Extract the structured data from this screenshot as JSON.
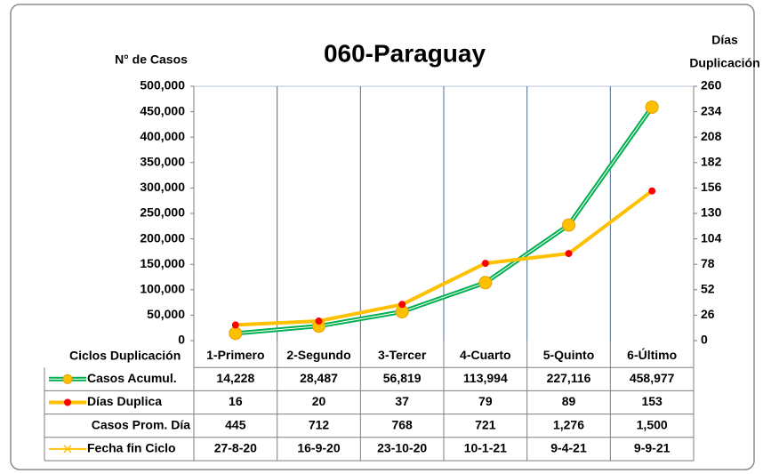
{
  "chart_data": {
    "type": "line",
    "title": "060-Paraguay",
    "y_label": "N° de Casos",
    "y2_label": [
      "Días",
      "Duplicación"
    ],
    "table_header": "Ciclos Duplicación",
    "categories": [
      "1-Primero",
      "2-Segundo",
      "3-Tercer",
      "4-Cuarto",
      "5-Quinto",
      "6-Último"
    ],
    "ylim": [
      0,
      500000
    ],
    "yticks": [
      0,
      {
        "value": 50000,
        "label": "50,000"
      },
      {
        "value": 100000,
        "label": "100,000"
      },
      {
        "value": 150000,
        "label": "150,000"
      },
      {
        "value": 200000,
        "label": "200,000"
      },
      {
        "value": 250000,
        "label": "250,000"
      },
      {
        "value": 300000,
        "label": "300,000"
      },
      {
        "value": 350000,
        "label": "350,000"
      },
      {
        "value": 400000,
        "label": "400,000"
      },
      {
        "value": 450000,
        "label": "450,000"
      },
      {
        "value": 500000,
        "label": "500,000"
      }
    ],
    "y2lim": [
      0,
      260
    ],
    "y2ticks": [
      0,
      26,
      52,
      78,
      104,
      130,
      156,
      182,
      208,
      234,
      260
    ],
    "series": [
      {
        "name": "Casos Acumul.",
        "color": "#00b050",
        "marker_color": "#ffc000",
        "values": [
          14228,
          28487,
          56819,
          113994,
          227116,
          458977
        ],
        "value_labels": [
          "14,228",
          "28,487",
          "56,819",
          "113,994",
          "227,116",
          "458,977"
        ]
      },
      {
        "name": "Días Duplica",
        "color": "#ffc000",
        "marker_color": "#ff0000",
        "axis": "y2",
        "values": [
          16,
          20,
          37,
          79,
          89,
          153
        ]
      }
    ],
    "table_rows": [
      {
        "name": "Casos Prom. Día",
        "values": [
          445,
          712,
          768,
          721,
          1276,
          1500
        ],
        "value_labels": [
          "445",
          "712",
          "768",
          "721",
          "1,276",
          "1,500"
        ]
      },
      {
        "name": "Fecha fin Ciclo",
        "color": "#ffc000",
        "labels": [
          "27-8-20",
          "16-9-20",
          "23-10-20",
          "10-1-21",
          "9-4-21",
          "9-9-21"
        ]
      }
    ]
  }
}
